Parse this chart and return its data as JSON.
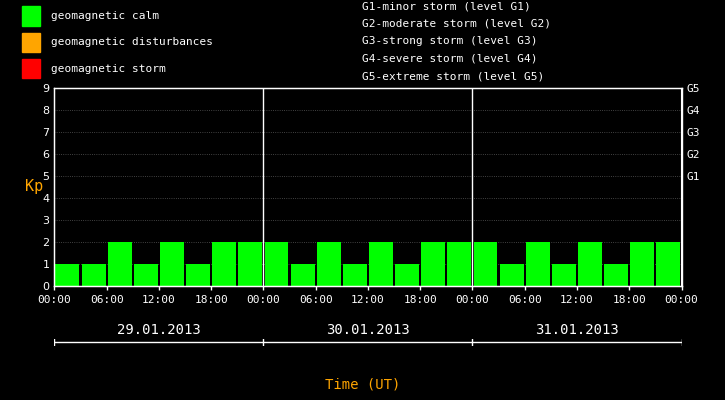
{
  "bg_color": "#000000",
  "bar_color_calm": "#00ff00",
  "bar_color_disturbance": "#ffa500",
  "bar_color_storm": "#ff0000",
  "text_color": "#ffffff",
  "axis_color": "#ffffff",
  "xlabel": "Time (UT)",
  "xlabel_color": "#ffa500",
  "ylabel": "Kp",
  "ylabel_color": "#ffa500",
  "ylim": [
    0,
    9
  ],
  "yticks": [
    0,
    1,
    2,
    3,
    4,
    5,
    6,
    7,
    8,
    9
  ],
  "grid_color": "#ffffff",
  "dates": [
    "29.01.2013",
    "30.01.2013",
    "31.01.2013"
  ],
  "xtick_labels": [
    "00:00",
    "06:00",
    "12:00",
    "18:00",
    "00:00",
    "06:00",
    "12:00",
    "18:00",
    "00:00",
    "06:00",
    "12:00",
    "18:00",
    "00:00"
  ],
  "kp_values": [
    1,
    1,
    2,
    1,
    2,
    1,
    2,
    2,
    2,
    1,
    2,
    1,
    2,
    1,
    2,
    2,
    2,
    1,
    2,
    1,
    2,
    1,
    2,
    2
  ],
  "right_axis_labels": [
    "G1",
    "G2",
    "G3",
    "G4",
    "G5"
  ],
  "right_axis_values": [
    5,
    6,
    7,
    8,
    9
  ],
  "legend_items": [
    {
      "label": "geomagnetic calm",
      "color": "#00ff00"
    },
    {
      "label": "geomagnetic disturbances",
      "color": "#ffa500"
    },
    {
      "label": "geomagnetic storm",
      "color": "#ff0000"
    }
  ],
  "storm_levels": [
    "G1-minor storm (level G1)",
    "G2-moderate storm (level G2)",
    "G3-strong storm (level G3)",
    "G4-severe storm (level G4)",
    "G5-extreme storm (level G5)"
  ],
  "font_family": "monospace",
  "font_size": 8,
  "date_font_size": 10,
  "ylabel_font_size": 11
}
